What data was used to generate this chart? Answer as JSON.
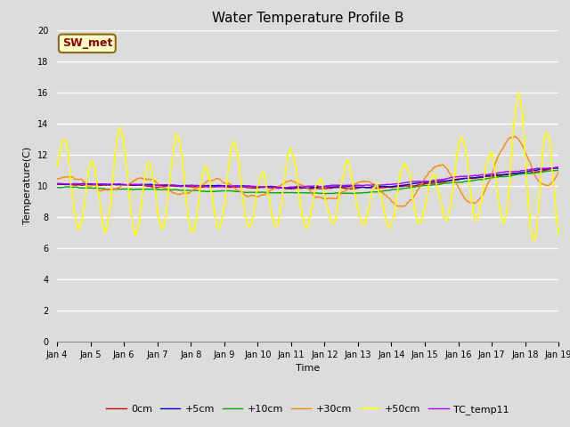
{
  "title": "Water Temperature Profile B",
  "xlabel": "Time",
  "ylabel": "Temperature(C)",
  "ylim": [
    0,
    20
  ],
  "xlim": [
    0,
    15
  ],
  "yticks": [
    0,
    2,
    4,
    6,
    8,
    10,
    12,
    14,
    16,
    18,
    20
  ],
  "xtick_labels": [
    "Jan 4",
    "Jan 5",
    "Jan 6",
    "Jan 7",
    "Jan 8",
    "Jan 9",
    "Jan 10",
    "Jan 11",
    "Jan 12",
    "Jan 13",
    "Jan 14",
    "Jan 15",
    "Jan 16",
    "Jan 17",
    "Jan 18",
    "Jan 19"
  ],
  "background_color": "#dcdcdc",
  "plot_bg_color": "#dcdcdc",
  "annotation_text": "SW_met",
  "annotation_bg": "#ffffcc",
  "annotation_fg": "#8b0000",
  "lines": [
    {
      "label": "0cm",
      "color": "#cc0000",
      "lw": 1.0
    },
    {
      "label": "+5cm",
      "color": "#0000cc",
      "lw": 1.0
    },
    {
      "label": "+10cm",
      "color": "#00aa00",
      "lw": 1.0
    },
    {
      "label": "+30cm",
      "color": "#ff8800",
      "lw": 1.0
    },
    {
      "label": "+50cm",
      "color": "#ffff00",
      "lw": 1.2
    },
    {
      "label": "TC_temp11",
      "color": "#aa00ff",
      "lw": 1.0
    }
  ],
  "grid_color": "#ffffff",
  "grid_lw": 1.0,
  "title_fontsize": 11,
  "axis_fontsize": 8,
  "tick_fontsize": 7,
  "legend_fontsize": 8
}
